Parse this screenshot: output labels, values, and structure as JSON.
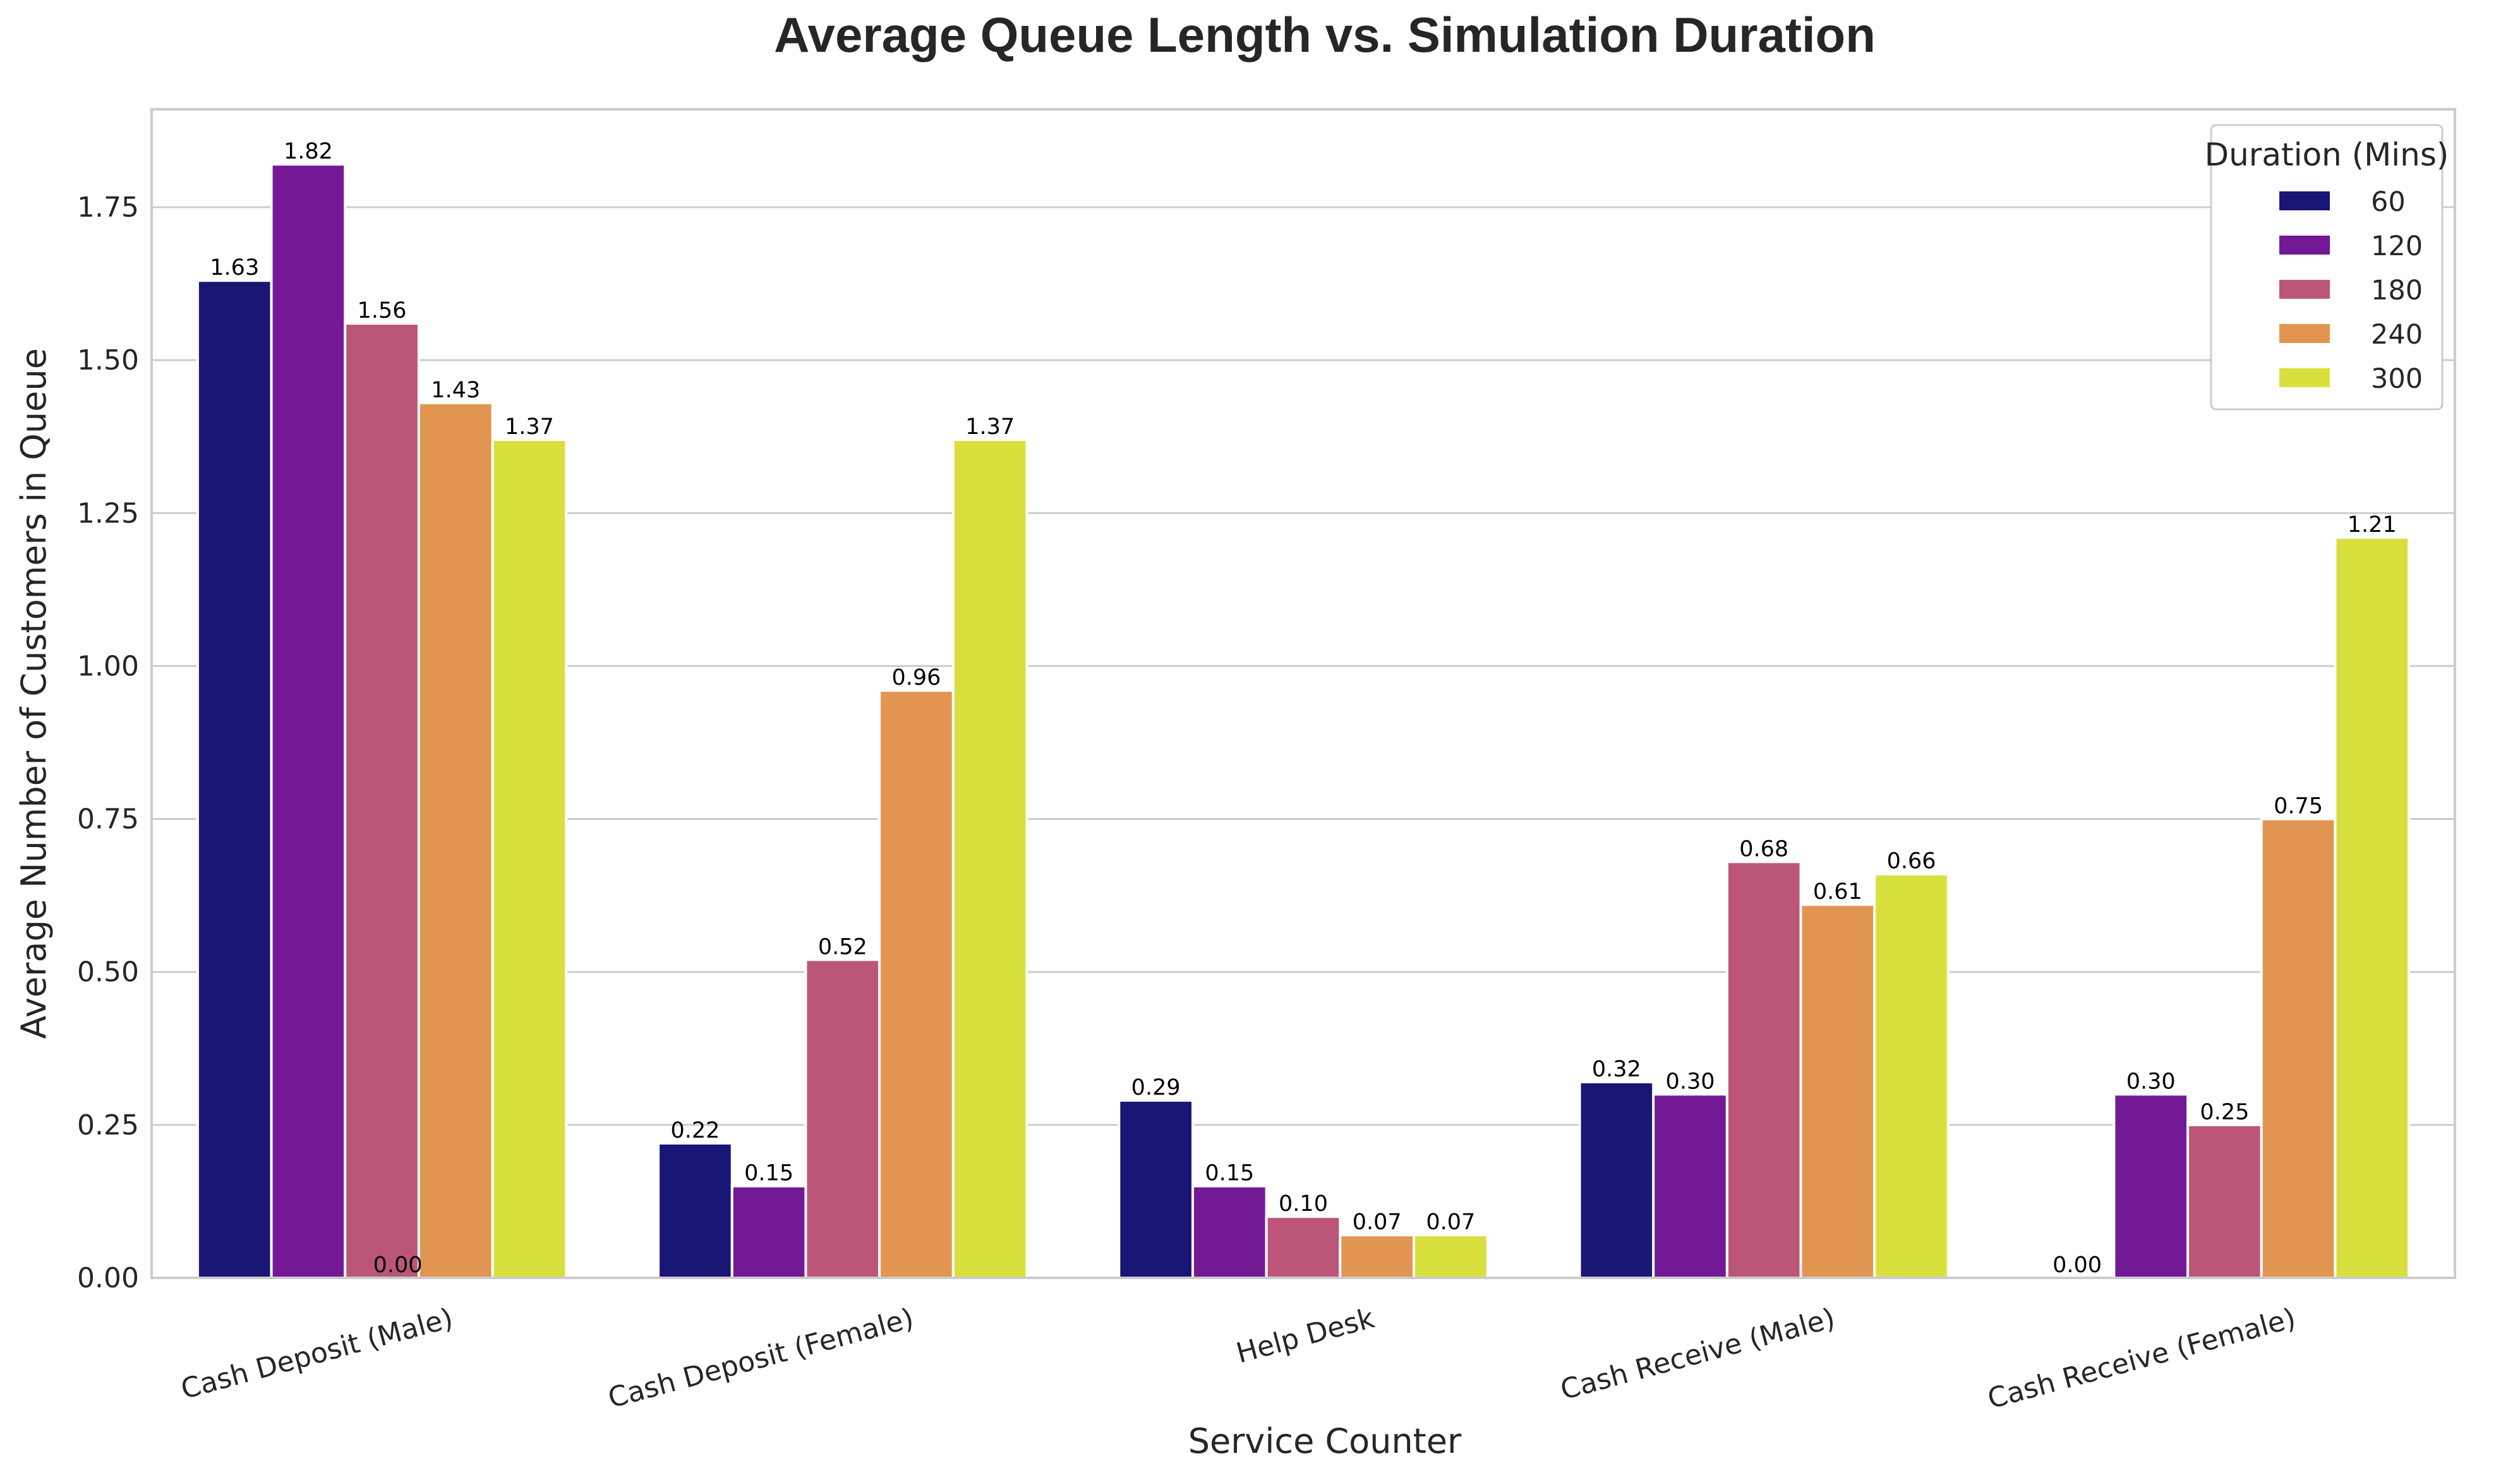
{
  "chart_data": {
    "type": "bar",
    "title": "Average Queue Length vs. Simulation Duration",
    "xlabel": "Service Counter",
    "ylabel": "Average Number of Customers in Queue",
    "categories": [
      "Cash Deposit (Male)",
      "Cash Deposit (Female)",
      "Help Desk",
      "Cash Receive (Male)",
      "Cash Receive (Female)"
    ],
    "ylim": [
      0,
      1.91
    ],
    "yticks": [
      "0.00",
      "0.25",
      "0.50",
      "0.75",
      "1.00",
      "1.25",
      "1.50",
      "1.75"
    ],
    "grid": true,
    "legend": {
      "title": "Duration (Mins)",
      "placement": "top-right"
    },
    "series": [
      {
        "name": "60",
        "color": "#1a1675",
        "values": [
          1.63,
          0.22,
          0.29,
          0.32,
          0.0
        ],
        "labels": [
          "1.63",
          "0.22",
          "0.29",
          "0.32",
          "0.00"
        ]
      },
      {
        "name": "120",
        "color": "#731996",
        "values": [
          1.82,
          0.15,
          0.15,
          0.3,
          0.3
        ],
        "labels": [
          "1.82",
          "0.15",
          "0.15",
          "0.30",
          "0.30"
        ]
      },
      {
        "name": "180",
        "color": "#bc5678",
        "values": [
          1.56,
          0.52,
          0.1,
          0.68,
          0.25
        ],
        "labels": [
          "1.56",
          "0.52",
          "0.10",
          "0.68",
          "0.25"
        ]
      },
      {
        "name": "240",
        "color": "#e29551",
        "values": [
          1.43,
          0.96,
          0.07,
          0.61,
          0.75
        ],
        "labels": [
          "1.43",
          "0.96",
          "0.07",
          "0.61",
          "0.75"
        ]
      },
      {
        "name": "300",
        "color": "#d9e03e",
        "values": [
          1.37,
          1.37,
          0.07,
          0.66,
          1.21
        ],
        "labels": [
          "1.37",
          "1.37",
          "0.07",
          "0.66",
          "1.21"
        ]
      }
    ],
    "extra_labels": [
      {
        "category_index": 0,
        "text": "0.00"
      }
    ]
  }
}
